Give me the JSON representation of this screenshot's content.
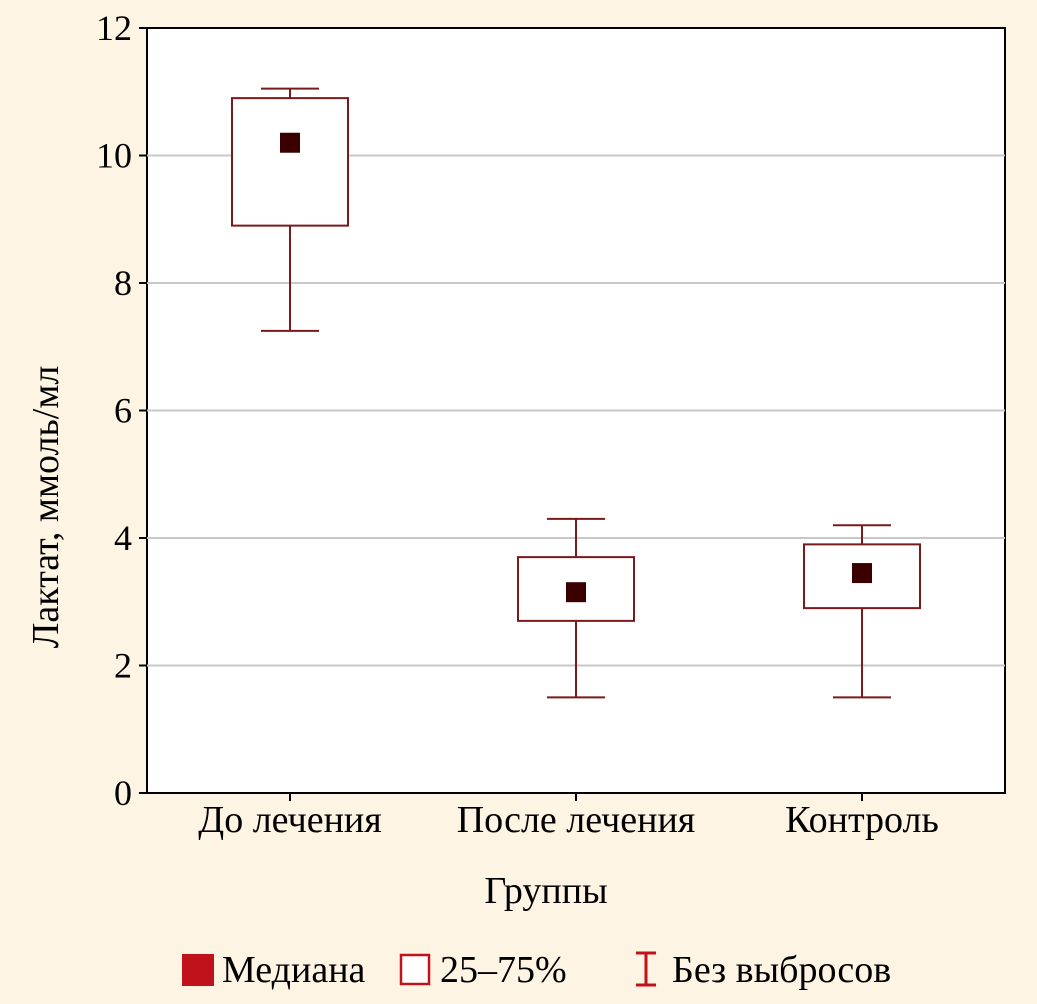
{
  "chart_data": {
    "type": "box",
    "title": "",
    "xlabel": "Группы",
    "ylabel": "Лактат, ммоль/мл",
    "ylim": [
      0,
      12
    ],
    "yticks": [
      0,
      2,
      4,
      6,
      8,
      10,
      12
    ],
    "grid": "horizontal",
    "legend_position": "bottom",
    "categories": [
      "До лечения",
      "После лечения",
      "Контроль"
    ],
    "series": [
      {
        "name": "Медиана",
        "values": [
          10.2,
          3.15,
          3.45
        ]
      },
      {
        "name": "25–75%",
        "q1": [
          8.9,
          2.7,
          2.9
        ],
        "q3": [
          10.9,
          3.7,
          3.9
        ]
      },
      {
        "name": "Без выбросов",
        "min": [
          7.25,
          1.5,
          1.5
        ],
        "max": [
          11.05,
          4.3,
          4.2
        ]
      }
    ],
    "colors": {
      "box_stroke": "#7a1a1a",
      "median_fill": "#3a0000",
      "legend_median": "#c0121b",
      "legend_box": "#c0121b",
      "legend_whisker": "#c0121b",
      "grid": "#c8c8c8",
      "plot_bg": "#ffffff",
      "page_bg": "#fdf4e3"
    }
  }
}
